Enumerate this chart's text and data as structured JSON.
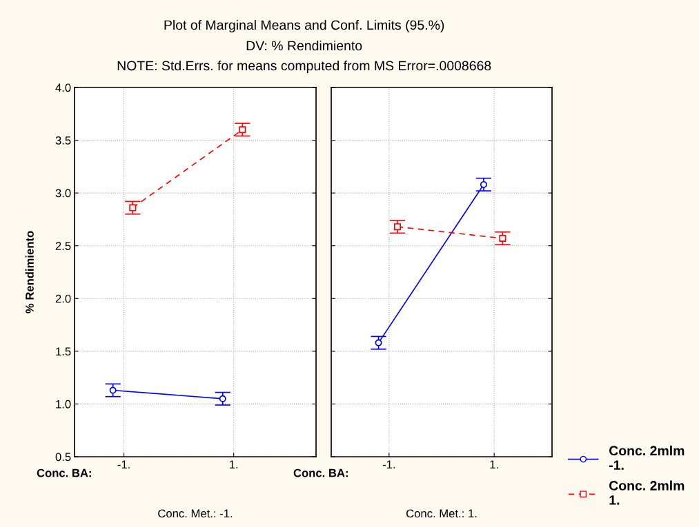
{
  "chart_data": [
    {
      "type": "line",
      "title": "Plot of Marginal Means and Conf. Limits (95.%)",
      "subtitle": "DV: % Rendimiento",
      "annotations": [
        "NOTE: Std.Errs. for means computed from MS Error=.0008668",
        "Conc. BA:"
      ],
      "xlabel": "Conc. Met.: -1.",
      "ylabel": "% Rendimiento",
      "categories": [
        "-1.",
        "1."
      ],
      "ylim": [
        0.5,
        4.0
      ],
      "yticks": [
        {
          "value": 0.5,
          "label": "0.5"
        },
        {
          "value": 1.0,
          "label": "1.0"
        },
        {
          "value": 1.5,
          "label": "1.5"
        },
        {
          "value": 2.0,
          "label": "2.0"
        },
        {
          "value": 2.5,
          "label": "2.5"
        },
        {
          "value": 3.0,
          "label": "3.0"
        },
        {
          "value": 3.5,
          "label": "3.5"
        },
        {
          "value": 4.0,
          "label": "4.0"
        }
      ],
      "grid": true,
      "series": [
        {
          "color": "#0000ff",
          "marker": "circle",
          "line_style": "solid",
          "values": [
            1.13,
            1.05
          ],
          "errors": [
            0.06,
            0.06
          ]
        },
        {
          "color": "#ff0000",
          "marker": "square",
          "line_style": "dashed",
          "values": [
            2.86,
            3.6
          ],
          "errors": [
            0.06,
            0.06
          ]
        }
      ]
    },
    {
      "type": "line",
      "annotations": [
        "Conc. BA:"
      ],
      "xlabel": "Conc. Met.: 1.",
      "categories": [
        "-1.",
        "1."
      ],
      "ylim": [
        0.5,
        4.0
      ],
      "yticks": [
        {
          "value": 0.5,
          "label": null
        },
        {
          "value": 1.0,
          "label": null
        },
        {
          "value": 1.5,
          "label": null
        },
        {
          "value": 2.0,
          "label": null
        },
        {
          "value": 2.5,
          "label": null
        },
        {
          "value": 3.0,
          "label": null
        },
        {
          "value": 3.5,
          "label": null
        },
        {
          "value": 4.0,
          "label": null
        }
      ],
      "grid": true,
      "tick_labels": "x",
      "legend": "right",
      "series": [
        {
          "name": "Conc. 2mlm\n-1.",
          "color": "#0000ff",
          "marker": "circle",
          "line_style": "solid",
          "values": [
            1.58,
            3.08
          ],
          "errors": [
            0.06,
            0.06
          ]
        },
        {
          "name": "Conc. 2mlm\n1.",
          "color": "#ff0000",
          "marker": "square",
          "line_style": "dashed",
          "values": [
            2.68,
            2.57
          ],
          "errors": [
            0.06,
            0.06
          ]
        }
      ]
    }
  ]
}
